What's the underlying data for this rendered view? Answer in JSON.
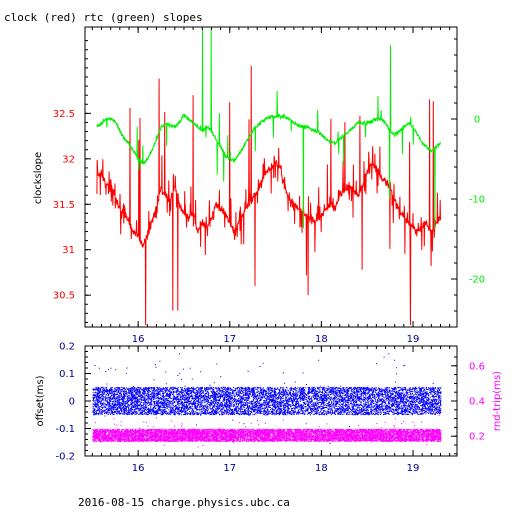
{
  "title": "clock (red) rtc (green) slopes",
  "footer": "2016-08-15 charge.physics.ubc.ca",
  "colors": {
    "clock": "#ff0000",
    "rtc": "#00ee00",
    "offset": "#0000ff",
    "rndtrip": "#ff00ff",
    "axis": "#000000",
    "x_ticks": "#000088"
  },
  "chart_data": [
    {
      "type": "line",
      "ylabel": "clockslope",
      "y2label": "",
      "xlim": [
        15.42,
        19.48
      ],
      "x_ticks": [
        "16",
        "17",
        "18",
        "19"
      ],
      "ylim": [
        30.15,
        33.45
      ],
      "y_ticks": [
        "30.5",
        "31",
        "31.5",
        "32",
        "32.5"
      ],
      "y2lim": [
        -26.0,
        11.5
      ],
      "y2_ticks": [
        "-20",
        "-10",
        "0"
      ],
      "series": [
        {
          "name": "clock",
          "axis": "left",
          "x": [
            15.55,
            15.6,
            15.65,
            15.7,
            15.75,
            15.8,
            15.85,
            15.9,
            15.95,
            16.0,
            16.05,
            16.1,
            16.15,
            16.2,
            16.25,
            16.3,
            16.35,
            16.4,
            16.45,
            16.5,
            16.55,
            16.6,
            16.65,
            16.7,
            16.75,
            16.8,
            16.85,
            16.9,
            16.95,
            17.0,
            17.05,
            17.1,
            17.15,
            17.2,
            17.25,
            17.3,
            17.35,
            17.4,
            17.45,
            17.5,
            17.55,
            17.6,
            17.65,
            17.7,
            17.75,
            17.8,
            17.85,
            17.9,
            17.95,
            18.0,
            18.05,
            18.1,
            18.15,
            18.2,
            18.25,
            18.3,
            18.35,
            18.4,
            18.45,
            18.5,
            18.55,
            18.6,
            18.65,
            18.7,
            18.75,
            18.8,
            18.85,
            18.9,
            18.95,
            19.0,
            19.05,
            19.1,
            19.15,
            19.2,
            19.25,
            19.3
          ],
          "values": [
            31.8,
            31.85,
            31.7,
            31.75,
            31.55,
            31.45,
            31.4,
            31.3,
            31.2,
            31.15,
            31.05,
            31.15,
            31.3,
            31.45,
            31.65,
            31.6,
            31.55,
            31.7,
            31.5,
            31.4,
            31.35,
            31.4,
            31.2,
            31.3,
            31.25,
            31.35,
            31.5,
            31.45,
            31.4,
            31.3,
            31.2,
            31.3,
            31.4,
            31.5,
            31.55,
            31.65,
            31.75,
            31.85,
            31.9,
            31.95,
            31.9,
            31.7,
            31.55,
            31.5,
            31.45,
            31.4,
            31.35,
            31.35,
            31.3,
            31.4,
            31.45,
            31.5,
            31.45,
            31.6,
            31.65,
            31.7,
            31.65,
            31.6,
            31.7,
            31.85,
            31.95,
            31.9,
            31.8,
            31.75,
            31.7,
            31.55,
            31.45,
            31.35,
            31.3,
            31.25,
            31.2,
            31.25,
            31.3,
            31.2,
            31.3,
            31.35
          ]
        },
        {
          "name": "rtc",
          "axis": "right",
          "x": [
            15.55,
            15.6,
            15.65,
            15.7,
            15.75,
            15.8,
            15.85,
            15.9,
            15.95,
            16.0,
            16.05,
            16.1,
            16.15,
            16.2,
            16.25,
            16.3,
            16.35,
            16.4,
            16.45,
            16.5,
            16.55,
            16.6,
            16.65,
            16.7,
            16.75,
            16.8,
            16.85,
            16.9,
            16.95,
            17.0,
            17.05,
            17.1,
            17.15,
            17.2,
            17.25,
            17.3,
            17.35,
            17.4,
            17.45,
            17.5,
            17.55,
            17.6,
            17.65,
            17.7,
            17.75,
            17.8,
            17.85,
            17.9,
            17.95,
            18.0,
            18.05,
            18.1,
            18.15,
            18.2,
            18.25,
            18.3,
            18.35,
            18.4,
            18.45,
            18.5,
            18.55,
            18.6,
            18.65,
            18.7,
            18.75,
            18.8,
            18.85,
            18.9,
            18.95,
            19.0,
            19.05,
            19.1,
            19.15,
            19.2,
            19.25,
            19.3
          ],
          "values": [
            -1.0,
            -0.5,
            0.0,
            0.0,
            -0.3,
            -1.5,
            -2.5,
            -3.0,
            -4.0,
            -5.0,
            -5.5,
            -5.0,
            -4.0,
            -2.5,
            -1.0,
            -0.5,
            -0.8,
            -1.0,
            -0.5,
            0.5,
            0.0,
            -0.5,
            -1.0,
            -1.5,
            -1.0,
            -1.5,
            -2.5,
            -3.5,
            -4.5,
            -5.0,
            -5.2,
            -4.5,
            -3.5,
            -2.5,
            -1.5,
            -0.8,
            -0.3,
            0.0,
            0.3,
            0.3,
            0.3,
            0.2,
            0.0,
            -0.5,
            -0.8,
            -1.0,
            -1.0,
            -1.3,
            -1.5,
            -2.0,
            -2.5,
            -2.8,
            -3.0,
            -2.5,
            -2.0,
            -1.5,
            -1.0,
            -0.5,
            -0.5,
            -0.5,
            -0.3,
            0.0,
            0.0,
            -0.5,
            -1.5,
            -2.0,
            -1.5,
            -1.0,
            -0.5,
            -1.0,
            -2.0,
            -3.0,
            -3.5,
            -4.0,
            -3.5,
            -3.0
          ]
        }
      ]
    },
    {
      "type": "scatter",
      "ylabel": "offset(ms)",
      "y2label": "rnd-trip(ms)",
      "xlim": [
        15.42,
        19.48
      ],
      "x_ticks": [
        "16",
        "17",
        "18",
        "19"
      ],
      "ylim": [
        -0.2,
        0.2
      ],
      "y_ticks": [
        "-0.2",
        "-0.1",
        "0",
        "0.1",
        "0.2"
      ],
      "y2lim": [
        0.0875,
        0.7125
      ],
      "y2_ticks": [
        "0.2",
        "0.4",
        "0.6"
      ],
      "series": [
        {
          "name": "offset",
          "axis": "left",
          "x_range": [
            15.5,
            19.3
          ],
          "center": 0.0,
          "spread": 0.05
        },
        {
          "name": "rnd-trip",
          "axis": "right",
          "x_range": [
            15.5,
            19.3
          ],
          "center": 0.205,
          "spread": 0.035
        }
      ]
    }
  ]
}
